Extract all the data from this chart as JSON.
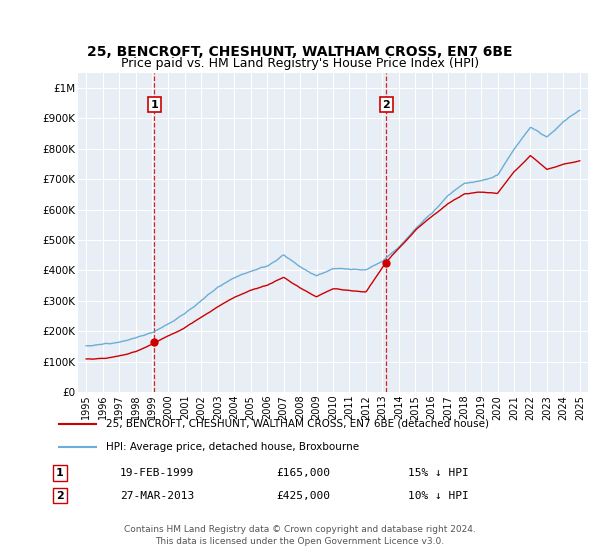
{
  "title1": "25, BENCROFT, CHESHUNT, WALTHAM CROSS, EN7 6BE",
  "title2": "Price paid vs. HM Land Registry's House Price Index (HPI)",
  "footer": "Contains HM Land Registry data © Crown copyright and database right 2024.\nThis data is licensed under the Open Government Licence v3.0.",
  "legend_line1": "25, BENCROFT, CHESHUNT, WALTHAM CROSS, EN7 6BE (detached house)",
  "legend_line2": "HPI: Average price, detached house, Broxbourne",
  "ann1_label": "1",
  "ann1_date": "19-FEB-1999",
  "ann1_price": "£165,000",
  "ann1_pct": "15% ↓ HPI",
  "ann1_x": 1999.13,
  "ann1_y": 165000,
  "ann2_label": "2",
  "ann2_date": "27-MAR-2013",
  "ann2_price": "£425,000",
  "ann2_pct": "10% ↓ HPI",
  "ann2_x": 2013.24,
  "ann2_y": 425000,
  "hpi_color": "#6baed6",
  "price_color": "#cc0000",
  "bg_color": "#e8eef5",
  "grid_color": "#ffffff",
  "ylim": [
    0,
    1050000
  ],
  "xlim": [
    1994.5,
    2025.5
  ],
  "yticks": [
    0,
    100000,
    200000,
    300000,
    400000,
    500000,
    600000,
    700000,
    800000,
    900000,
    1000000
  ],
  "ytick_labels": [
    "£0",
    "£100K",
    "£200K",
    "£300K",
    "£400K",
    "£500K",
    "£600K",
    "£700K",
    "£800K",
    "£900K",
    "£1M"
  ],
  "xticks": [
    1995,
    1996,
    1997,
    1998,
    1999,
    2000,
    2001,
    2002,
    2003,
    2004,
    2005,
    2006,
    2007,
    2008,
    2009,
    2010,
    2011,
    2012,
    2013,
    2014,
    2015,
    2016,
    2017,
    2018,
    2019,
    2020,
    2021,
    2022,
    2023,
    2024,
    2025
  ],
  "hpi_years": [
    1995,
    1996,
    1997,
    1998,
    1999,
    2000,
    2001,
    2002,
    2003,
    2004,
    2005,
    2006,
    2007,
    2008,
    2009,
    2010,
    2011,
    2012,
    2013,
    2014,
    2015,
    2016,
    2017,
    2018,
    2019,
    2020,
    2021,
    2022,
    2023,
    2024,
    2025
  ],
  "hpi_vals": [
    138000,
    143000,
    155000,
    168000,
    185000,
    218000,
    252000,
    295000,
    340000,
    375000,
    400000,
    418000,
    455000,
    420000,
    390000,
    415000,
    410000,
    405000,
    430000,
    480000,
    540000,
    590000,
    650000,
    690000,
    700000,
    715000,
    800000,
    870000,
    840000,
    890000,
    930000
  ],
  "red_years": [
    1995,
    1996,
    1997,
    1998,
    1999.13,
    2000,
    2001,
    2002,
    2003,
    2004,
    2005,
    2006,
    2007,
    2008,
    2009,
    2010,
    2011,
    2012,
    2013.24,
    2014,
    2015,
    2016,
    2017,
    2018,
    2019,
    2020,
    2021,
    2022,
    2023,
    2024,
    2025
  ],
  "red_vals": [
    115000,
    118000,
    125000,
    138000,
    165000,
    190000,
    215000,
    248000,
    285000,
    315000,
    335000,
    350000,
    375000,
    340000,
    310000,
    335000,
    330000,
    325000,
    425000,
    470000,
    530000,
    575000,
    620000,
    650000,
    655000,
    650000,
    720000,
    775000,
    730000,
    750000,
    760000
  ]
}
